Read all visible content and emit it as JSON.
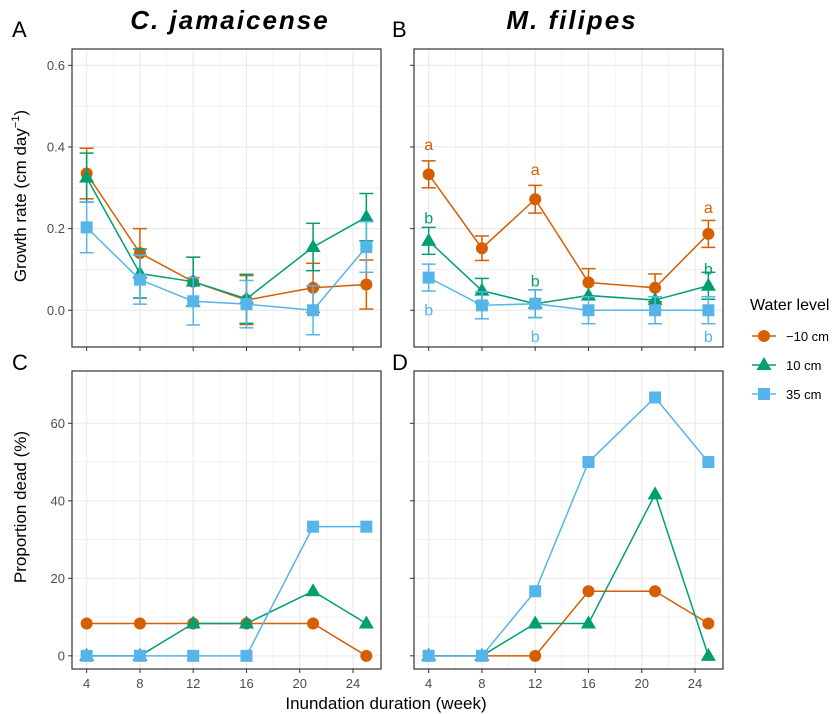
{
  "chart_data": [
    {
      "panel": "A",
      "title": "C. jamaicense",
      "type": "line",
      "ylabel_main": "Growth rate (cm day",
      "ylabel_sup": "−1",
      "ylabel_end": ")",
      "ylim": [
        -0.09,
        0.64
      ],
      "yticks": [
        0.0,
        0.2,
        0.4,
        0.6
      ],
      "ytick_labels": [
        "0.0",
        "0.2",
        "0.4",
        "0.6"
      ],
      "xlim": [
        2.9,
        26.1
      ],
      "xticks": [
        4,
        8,
        12,
        16,
        20,
        24
      ],
      "series": [
        {
          "name": "−10 cm",
          "color": "#D55E00",
          "marker": "circle",
          "x": [
            4,
            8,
            12,
            16,
            21,
            25
          ],
          "y": [
            0.335,
            0.14,
            0.07,
            0.025,
            0.055,
            0.063
          ],
          "err": [
            0.062,
            0.06,
            0.06,
            0.06,
            0.06,
            0.06
          ]
        },
        {
          "name": "10 cm",
          "color": "#009E73",
          "marker": "triangle",
          "x": [
            4,
            8,
            12,
            16,
            21,
            25
          ],
          "y": [
            0.325,
            0.09,
            0.07,
            0.028,
            0.155,
            0.228
          ],
          "err": [
            0.06,
            0.06,
            0.06,
            0.06,
            0.058,
            0.058
          ]
        },
        {
          "name": "35 cm",
          "color": "#56B4E9",
          "marker": "square",
          "x": [
            4,
            8,
            12,
            16,
            21,
            25
          ],
          "y": [
            0.203,
            0.075,
            0.022,
            0.015,
            0.0,
            0.155
          ],
          "err": [
            0.062,
            0.06,
            0.058,
            0.058,
            0.06,
            0.062
          ]
        }
      ],
      "annotations": []
    },
    {
      "panel": "B",
      "title": "M. filipes",
      "type": "line",
      "ylim": [
        -0.09,
        0.64
      ],
      "yticks": [
        0.0,
        0.2,
        0.4,
        0.6
      ],
      "xlim": [
        2.9,
        26.1
      ],
      "xticks": [
        4,
        8,
        12,
        16,
        20,
        24
      ],
      "series": [
        {
          "name": "−10 cm",
          "color": "#D55E00",
          "marker": "circle",
          "x": [
            4,
            8,
            12,
            16,
            21,
            25
          ],
          "y": [
            0.333,
            0.152,
            0.272,
            0.068,
            0.055,
            0.187
          ],
          "err": [
            0.033,
            0.03,
            0.034,
            0.034,
            0.034,
            0.033
          ]
        },
        {
          "name": "10 cm",
          "color": "#009E73",
          "marker": "triangle",
          "x": [
            4,
            8,
            12,
            16,
            21,
            25
          ],
          "y": [
            0.17,
            0.048,
            0.016,
            0.036,
            0.025,
            0.06
          ],
          "err": [
            0.033,
            0.03,
            0.034,
            0.0,
            0.0,
            0.033
          ]
        },
        {
          "name": "35 cm",
          "color": "#56B4E9",
          "marker": "square",
          "x": [
            4,
            8,
            12,
            16,
            21,
            25
          ],
          "y": [
            0.08,
            0.012,
            0.016,
            0.0,
            0.0,
            0.0
          ],
          "err": [
            0.033,
            0.033,
            0.034,
            0.033,
            0.033,
            0.033
          ]
        }
      ],
      "annotations": [
        {
          "text": "a",
          "x": 4,
          "y": 0.405,
          "color": "#D55E00"
        },
        {
          "text": "a",
          "x": 12,
          "y": 0.343,
          "color": "#D55E00"
        },
        {
          "text": "a",
          "x": 25,
          "y": 0.25,
          "color": "#D55E00"
        },
        {
          "text": "b",
          "x": 4,
          "y": 0.225,
          "color": "#009E73"
        },
        {
          "text": "b",
          "x": 12,
          "y": 0.07,
          "color": "#009E73"
        },
        {
          "text": "b",
          "x": 25,
          "y": 0.1,
          "color": "#009E73"
        },
        {
          "text": "b",
          "x": 4,
          "y": 0.0,
          "color": "#56B4E9"
        },
        {
          "text": "b",
          "x": 12,
          "y": -0.065,
          "color": "#56B4E9"
        },
        {
          "text": "b",
          "x": 25,
          "y": -0.065,
          "color": "#56B4E9"
        }
      ]
    },
    {
      "panel": "C",
      "type": "line",
      "ylabel": "Proportion dead (%)",
      "ylim": [
        -3.4,
        73.5
      ],
      "yticks": [
        0,
        20,
        40,
        60
      ],
      "ytick_labels": [
        "0",
        "20",
        "40",
        "60"
      ],
      "xlim": [
        2.9,
        26.1
      ],
      "xticks": [
        4,
        8,
        12,
        16,
        20,
        24
      ],
      "xtick_labels": [
        "4",
        "8",
        "12",
        "16",
        "20",
        "24"
      ],
      "series": [
        {
          "name": "−10 cm",
          "color": "#D55E00",
          "marker": "circle",
          "x": [
            4,
            8,
            12,
            16,
            21,
            25
          ],
          "y": [
            8.33,
            8.33,
            8.33,
            8.33,
            8.33,
            0
          ]
        },
        {
          "name": "10 cm",
          "color": "#009E73",
          "marker": "triangle",
          "x": [
            4,
            8,
            12,
            16,
            21,
            25
          ],
          "y": [
            0,
            0,
            8.33,
            8.33,
            16.67,
            8.33
          ]
        },
        {
          "name": "35 cm",
          "color": "#56B4E9",
          "marker": "square",
          "x": [
            4,
            8,
            12,
            16,
            21,
            25
          ],
          "y": [
            0,
            0,
            0,
            0,
            33.33,
            33.33
          ]
        }
      ]
    },
    {
      "panel": "D",
      "type": "line",
      "ylim": [
        -3.4,
        73.5
      ],
      "yticks": [
        0,
        20,
        40,
        60
      ],
      "xlim": [
        2.9,
        26.1
      ],
      "xticks": [
        4,
        8,
        12,
        16,
        20,
        24
      ],
      "xtick_labels": [
        "4",
        "8",
        "12",
        "16",
        "20",
        "24"
      ],
      "series": [
        {
          "name": "−10 cm",
          "color": "#D55E00",
          "marker": "circle",
          "x": [
            4,
            8,
            12,
            16,
            21,
            25
          ],
          "y": [
            0,
            0,
            0,
            16.67,
            16.67,
            8.33
          ]
        },
        {
          "name": "10 cm",
          "color": "#009E73",
          "marker": "triangle",
          "x": [
            4,
            8,
            12,
            16,
            21,
            25
          ],
          "y": [
            0,
            0,
            8.33,
            8.33,
            41.67,
            0
          ]
        },
        {
          "name": "35 cm",
          "color": "#56B4E9",
          "marker": "square",
          "x": [
            4,
            8,
            12,
            16,
            21,
            25
          ],
          "y": [
            0,
            0,
            16.67,
            50,
            66.67,
            50
          ]
        }
      ]
    }
  ],
  "xlabel": "Inundation duration (week)",
  "legend": {
    "title": "Water level",
    "placement": "right",
    "items": [
      {
        "label": "−10 cm",
        "color": "#D55E00",
        "marker": "circle"
      },
      {
        "label": "10 cm",
        "color": "#009E73",
        "marker": "triangle"
      },
      {
        "label": "35 cm",
        "color": "#56B4E9",
        "marker": "square"
      }
    ]
  },
  "panel_border_color": "#333333",
  "grid_color": "#ebebeb"
}
